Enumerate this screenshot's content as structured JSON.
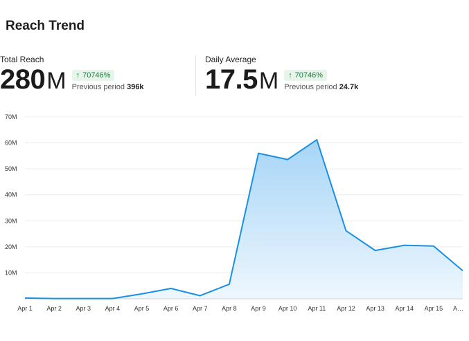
{
  "header": {
    "title": "Reach Trend"
  },
  "metrics": [
    {
      "label": "Total Reach",
      "value": "280",
      "unit": "M",
      "change": "70746%",
      "prev_label": "Previous period",
      "prev_value": "396k"
    },
    {
      "label": "Daily Average",
      "value": "17.5",
      "unit": "M",
      "change": "70746%",
      "prev_label": "Previous period",
      "prev_value": "24.7k"
    }
  ],
  "colors": {
    "line": "#1a8fe3",
    "fill_top": "#a6d5f7",
    "fill_bottom": "#eef7fe",
    "badge_bg": "#e6f4ea",
    "badge_text": "#1e7e3c"
  },
  "chart_data": {
    "type": "area",
    "categories": [
      "Apr 1",
      "Apr 2",
      "Apr 3",
      "Apr 4",
      "Apr 5",
      "Apr 6",
      "Apr 7",
      "Apr 8",
      "Apr 9",
      "Apr 10",
      "Apr 11",
      "Apr 12",
      "Apr 13",
      "Apr 14",
      "Apr 15",
      "A…"
    ],
    "values": [
      0.3,
      0.1,
      0.1,
      0.1,
      1.9,
      4.0,
      1.2,
      5.6,
      56.0,
      53.6,
      61.2,
      26.2,
      18.6,
      20.6,
      20.3,
      10.8
    ],
    "y_ticks": [
      10,
      20,
      30,
      40,
      50,
      60,
      70
    ],
    "y_tick_labels": [
      "10M",
      "20M",
      "30M",
      "40M",
      "50M",
      "60M",
      "70M"
    ],
    "ylim": [
      0,
      70
    ],
    "grid": true,
    "legend": "none"
  }
}
